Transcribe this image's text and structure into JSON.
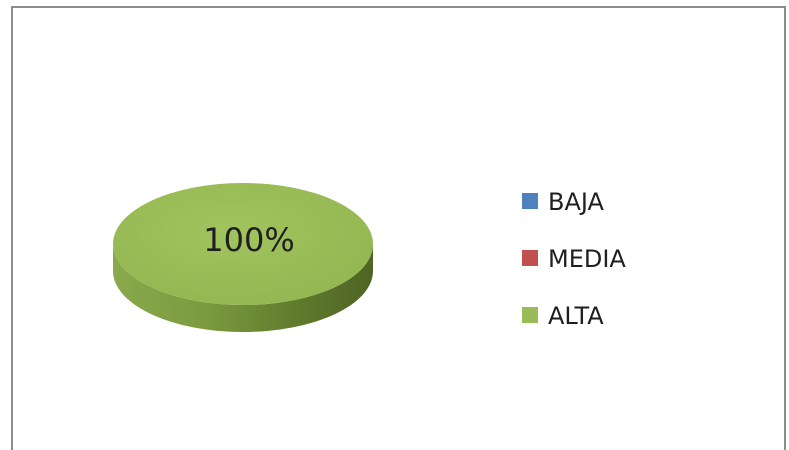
{
  "chart_data": {
    "type": "pie",
    "categories": [
      "BAJA",
      "MEDIA",
      "ALTA"
    ],
    "values": [
      0,
      0,
      100
    ],
    "data_labels": [
      "",
      "",
      "100%"
    ],
    "colors": [
      "#4f81bd",
      "#c0504d",
      "#9bbb59"
    ],
    "legend_position": "right",
    "style": "3d"
  }
}
